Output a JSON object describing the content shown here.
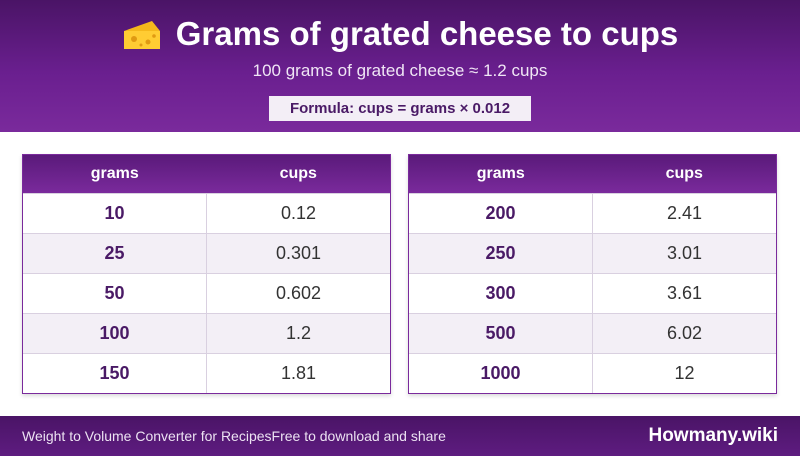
{
  "header": {
    "icon": "cheese-icon",
    "title": "Grams of grated cheese to cups",
    "subtitle": "100 grams of grated cheese ≈ 1.2 cups",
    "formula": "Formula: cups = grams × 0.012"
  },
  "colors": {
    "header_bg": "#6a1f8f",
    "accent": "#4a1a66",
    "footer_bg": "#4a1466",
    "alt_row": "#f3eff6"
  },
  "tables": [
    {
      "headers": [
        "grams",
        "cups"
      ],
      "rows": [
        {
          "grams": "10",
          "cups": "0.12"
        },
        {
          "grams": "25",
          "cups": "0.301"
        },
        {
          "grams": "50",
          "cups": "0.602"
        },
        {
          "grams": "100",
          "cups": "1.2"
        },
        {
          "grams": "150",
          "cups": "1.81"
        }
      ]
    },
    {
      "headers": [
        "grams",
        "cups"
      ],
      "rows": [
        {
          "grams": "200",
          "cups": "2.41"
        },
        {
          "grams": "250",
          "cups": "3.01"
        },
        {
          "grams": "300",
          "cups": "3.61"
        },
        {
          "grams": "500",
          "cups": "6.02"
        },
        {
          "grams": "1000",
          "cups": "12"
        }
      ]
    }
  ],
  "footer": {
    "left_text": "Weight to Volume Converter for RecipesFree to download and share",
    "brand": "Howmany.wiki"
  }
}
